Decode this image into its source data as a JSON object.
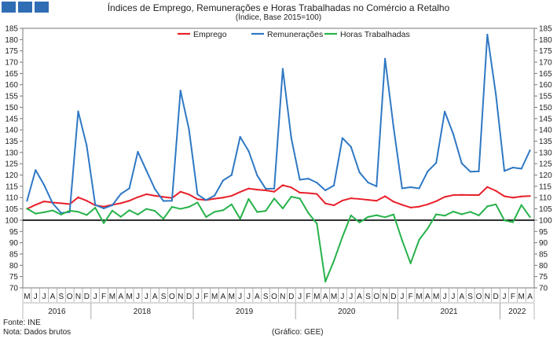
{
  "header": {
    "title": "Índices de Emprego, Remunerações e Horas Trabalhadas no Comércio a Retalho",
    "subtitle": "(Índice, Base 2015=100)"
  },
  "footer": {
    "source": "Fonte: INE",
    "note": "Nota: Dados brutos",
    "credit": "(Gráfico: GEE)"
  },
  "colors": {
    "brand": "#2f6db5",
    "emprego": "#e8202a",
    "remuneracoes": "#2f78c4",
    "horas": "#27b24a",
    "baseline": "#000000"
  },
  "chart_data": {
    "type": "line",
    "title": "Índices de Emprego, Remunerações e Horas Trabalhadas no Comércio a Retalho",
    "subtitle": "(Índice, Base 2015=100)",
    "x": [
      "M",
      "J",
      "J",
      "A",
      "S",
      "O",
      "N",
      "D",
      "J",
      "F",
      "M",
      "A",
      "M",
      "J",
      "J",
      "A",
      "S",
      "O",
      "N",
      "D",
      "J",
      "F",
      "M",
      "A",
      "M",
      "J",
      "J",
      "A",
      "S",
      "O",
      "N",
      "D",
      "J",
      "F",
      "M",
      "A",
      "M",
      "J",
      "J",
      "A",
      "S",
      "O",
      "N",
      "D",
      "J",
      "F",
      "M",
      "A",
      "M",
      "J",
      "J",
      "A",
      "S",
      "O",
      "N",
      "D",
      "J",
      "F",
      "M",
      "A"
    ],
    "year_labels": [
      {
        "label": "2016",
        "start": 0,
        "end": 7
      },
      {
        "label": "2018",
        "start": 8,
        "end": 19
      },
      {
        "label": "2019",
        "start": 20,
        "end": 31
      },
      {
        "label": "2020",
        "start": 32,
        "end": 43
      },
      {
        "label": "2021",
        "start": 44,
        "end": 55
      },
      {
        "label": "2022",
        "start": 56,
        "end": 59
      }
    ],
    "ylim": [
      70,
      185
    ],
    "y_ticks": [
      70,
      75,
      80,
      85,
      90,
      95,
      100,
      105,
      110,
      115,
      120,
      125,
      130,
      135,
      140,
      145,
      150,
      155,
      160,
      165,
      170,
      175,
      180,
      185
    ],
    "reference_line": 100,
    "dual_axis_labels": true,
    "legend_position": "top-center",
    "grid": false,
    "series": [
      {
        "name": "Emprego",
        "color": "#e8202a",
        "values": [
          105.0,
          106.8,
          108.3,
          107.8,
          107.5,
          107.1,
          110.1,
          108.6,
          106.6,
          106.0,
          106.8,
          107.5,
          108.6,
          110.2,
          111.5,
          110.8,
          110.3,
          109.8,
          112.6,
          111.4,
          109.3,
          108.9,
          109.5,
          110.0,
          110.8,
          112.5,
          114.0,
          113.5,
          113.2,
          112.6,
          115.5,
          114.5,
          112.2,
          112.0,
          111.6,
          107.4,
          106.6,
          108.7,
          109.7,
          109.4,
          109.0,
          108.6,
          110.6,
          108.2,
          106.8,
          105.6,
          106.0,
          107.0,
          108.4,
          110.3,
          111.1,
          111.2,
          111.1,
          111.1,
          114.7,
          113.0,
          110.6,
          110.0,
          110.5,
          110.7
        ]
      },
      {
        "name": "Remunerações",
        "color": "#2f78c4",
        "values": [
          108.6,
          122.2,
          115.6,
          107.5,
          103.2,
          103.6,
          148.2,
          133.0,
          106.8,
          105.2,
          106.6,
          111.6,
          114.1,
          130.3,
          122.0,
          113.8,
          108.5,
          108.6,
          157.4,
          140.2,
          111.4,
          108.9,
          110.9,
          117.6,
          120.0,
          136.9,
          130.6,
          119.8,
          113.9,
          114.0,
          167.0,
          136.4,
          117.9,
          118.4,
          116.6,
          113.2,
          115.4,
          136.4,
          132.5,
          121.2,
          116.7,
          115.0,
          171.5,
          141.2,
          114.1,
          114.6,
          114.1,
          121.6,
          125.4,
          148.1,
          138.2,
          125.2,
          121.5,
          121.6,
          182.2,
          155.8,
          121.8,
          123.3,
          122.8,
          130.9
        ]
      },
      {
        "name": "Horas Trabalhadas",
        "color": "#27b24a",
        "values": [
          105.1,
          102.9,
          103.5,
          104.3,
          102.5,
          104.2,
          103.7,
          102.3,
          105.5,
          98.7,
          104.2,
          101.5,
          104.4,
          102.5,
          105.0,
          104.1,
          100.6,
          105.9,
          105.0,
          105.9,
          107.8,
          101.4,
          103.7,
          104.4,
          107.0,
          100.6,
          109.4,
          103.6,
          104.1,
          109.6,
          105.2,
          110.4,
          109.6,
          103.2,
          98.5,
          72.8,
          82.0,
          92.6,
          102.1,
          99.0,
          101.4,
          102.2,
          101.3,
          102.5,
          91.1,
          80.9,
          91.3,
          96.3,
          102.6,
          102.0,
          103.8,
          102.6,
          103.7,
          102.1,
          106.1,
          107.0,
          99.9,
          99.1,
          106.7,
          101.4
        ]
      }
    ]
  }
}
